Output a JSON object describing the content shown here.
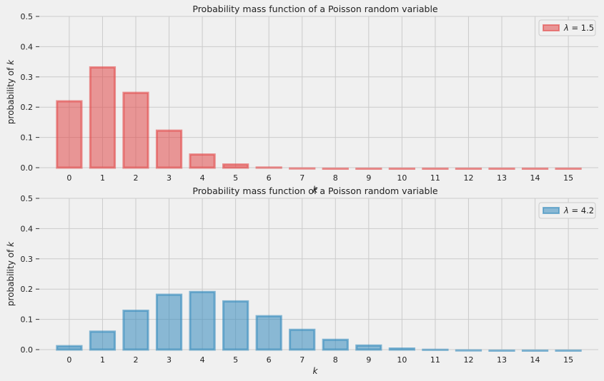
{
  "chart_data": [
    {
      "type": "bar",
      "title": "Probability mass function of a Poisson random variable",
      "xlabel": "k",
      "ylabel_prefix": "probability of ",
      "ylabel_var": "k",
      "categories": [
        "0",
        "1",
        "2",
        "3",
        "4",
        "5",
        "6",
        "7",
        "8",
        "9",
        "10",
        "11",
        "12",
        "13",
        "14",
        "15"
      ],
      "series": [
        {
          "name": "λ = 1.5",
          "legend_prefix": "λ",
          "legend_suffix": " = 1.5",
          "color": "#e24a4a",
          "values": [
            0.223,
            0.335,
            0.251,
            0.126,
            0.047,
            0.014,
            0.004,
            0.001,
            0.0,
            0.0,
            0.0,
            0.0,
            0.0,
            0.0,
            0.0,
            0.0
          ]
        }
      ],
      "ylim": [
        0,
        0.5
      ],
      "yticks": [
        "0.0",
        "0.1",
        "0.2",
        "0.3",
        "0.4",
        "0.5"
      ],
      "grid": true,
      "legend_position": "top-right"
    },
    {
      "type": "bar",
      "title": "Probability mass function of a Poisson random variable",
      "xlabel": "k",
      "ylabel_prefix": "probability of ",
      "ylabel_var": "k",
      "categories": [
        "0",
        "1",
        "2",
        "3",
        "4",
        "5",
        "6",
        "7",
        "8",
        "9",
        "10",
        "11",
        "12",
        "13",
        "14",
        "15"
      ],
      "series": [
        {
          "name": "λ = 4.2",
          "legend_prefix": "λ",
          "legend_suffix": " = 4.2",
          "color": "#348abd",
          "values": [
            0.015,
            0.063,
            0.132,
            0.185,
            0.194,
            0.163,
            0.114,
            0.069,
            0.036,
            0.017,
            0.007,
            0.003,
            0.001,
            0.0,
            0.0,
            0.0
          ]
        }
      ],
      "ylim": [
        0,
        0.5
      ],
      "yticks": [
        "0.0",
        "0.1",
        "0.2",
        "0.3",
        "0.4",
        "0.5"
      ],
      "grid": true,
      "legend_position": "top-right"
    }
  ]
}
